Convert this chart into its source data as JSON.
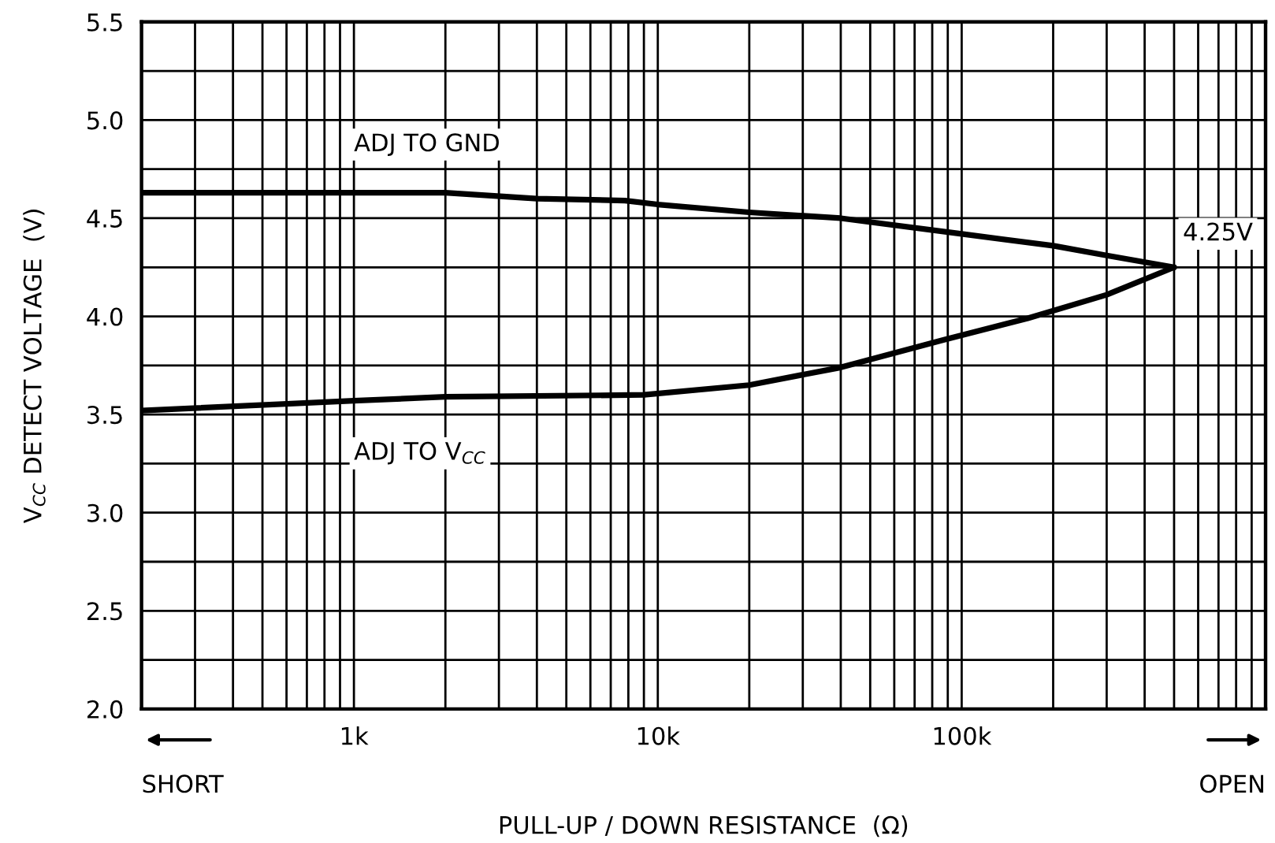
{
  "chart_data": {
    "type": "line",
    "xlabel": "PULL-UP / DOWN RESISTANCE  (Ω)",
    "ylabel": "V$_{CC}$ DETECT VOLTAGE  (V)",
    "series": [
      {
        "name": "ADJ TO GND",
        "color": "#000000",
        "x": [
          200,
          1000,
          2000,
          4000,
          7800,
          10000,
          20000,
          40000,
          100000,
          200000,
          300000,
          500000
        ],
        "values": [
          4.63,
          4.63,
          4.63,
          4.6,
          4.59,
          4.57,
          4.53,
          4.5,
          4.42,
          4.36,
          4.31,
          4.25
        ]
      },
      {
        "name": "ADJ TO V$_{CC}$",
        "color": "#000000",
        "x": [
          200,
          1000,
          2000,
          9000,
          20000,
          40000,
          87000,
          165000,
          300000,
          500000
        ],
        "values": [
          3.52,
          3.57,
          3.59,
          3.6,
          3.65,
          3.74,
          3.88,
          3.99,
          4.11,
          4.25
        ]
      }
    ],
    "annotations": [
      "4.25V",
      "SHORT",
      "OPEN"
    ],
    "log": "x",
    "xlim": [
      200,
      1000000
    ],
    "ylim": [
      2.0,
      5.5
    ],
    "xticks": [
      {
        "value": 200,
        "label": null
      },
      {
        "value": 300,
        "label": null
      },
      {
        "value": 400,
        "label": null
      },
      {
        "value": 500,
        "label": null
      },
      {
        "value": 600,
        "label": null
      },
      {
        "value": 700,
        "label": null
      },
      {
        "value": 800,
        "label": null
      },
      {
        "value": 900,
        "label": null
      },
      {
        "value": 1000,
        "label": "1k"
      },
      {
        "value": 2000,
        "label": null
      },
      {
        "value": 3000,
        "label": null
      },
      {
        "value": 4000,
        "label": null
      },
      {
        "value": 5000,
        "label": null
      },
      {
        "value": 6000,
        "label": null
      },
      {
        "value": 7000,
        "label": null
      },
      {
        "value": 8000,
        "label": null
      },
      {
        "value": 9000,
        "label": null
      },
      {
        "value": 10000,
        "label": "10k"
      },
      {
        "value": 20000,
        "label": null
      },
      {
        "value": 30000,
        "label": null
      },
      {
        "value": 40000,
        "label": null
      },
      {
        "value": 50000,
        "label": null
      },
      {
        "value": 60000,
        "label": null
      },
      {
        "value": 70000,
        "label": null
      },
      {
        "value": 80000,
        "label": null
      },
      {
        "value": 90000,
        "label": null
      },
      {
        "value": 100000,
        "label": "100k"
      },
      {
        "value": 200000,
        "label": null
      },
      {
        "value": 300000,
        "label": null
      },
      {
        "value": 400000,
        "label": null
      },
      {
        "value": 500000,
        "label": null
      },
      {
        "value": 600000,
        "label": null
      },
      {
        "value": 700000,
        "label": null
      },
      {
        "value": 800000,
        "label": null
      },
      {
        "value": 900000,
        "label": null
      },
      {
        "value": 1000000,
        "label": null
      }
    ],
    "yticks": [
      {
        "value": 2,
        "label": "2.0"
      },
      {
        "value": 2.25,
        "label": null
      },
      2.5,
      {
        "value": 2.75,
        "label": null
      },
      {
        "value": 3,
        "label": "3.0"
      },
      {
        "value": 3.25,
        "label": null
      },
      3.5,
      {
        "value": 3.75,
        "label": null
      },
      {
        "value": 4,
        "label": "4.0"
      },
      {
        "value": 4.25,
        "label": null
      },
      4.5,
      {
        "value": 4.75,
        "label": null
      },
      {
        "value": 5,
        "label": "5.0"
      },
      {
        "value": 5.25,
        "label": null
      },
      5.5
    ],
    "grid": true,
    "line_style": "solid",
    "marker": "none"
  }
}
